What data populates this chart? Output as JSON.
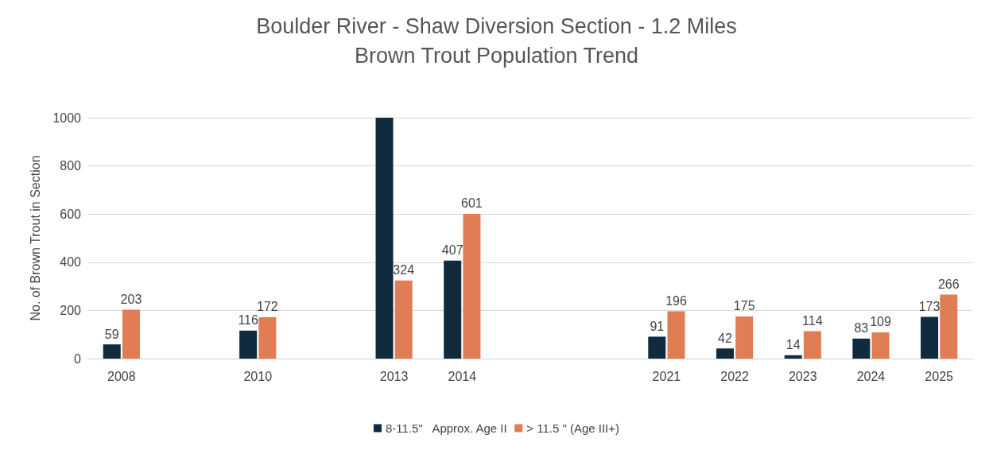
{
  "chart_data": {
    "type": "bar",
    "title": "Boulder River - Shaw Diversion Section - 1.2 Miles",
    "subtitle": "Brown Trout Population Trend",
    "ylabel": "No. of Brown Trout in Section",
    "categories": [
      "2008",
      null,
      "2010",
      null,
      "2013",
      "2014",
      null,
      null,
      "2021",
      "2022",
      "2023",
      "2024",
      "2025"
    ],
    "series": [
      {
        "name": "8-11.5\"   Approx. Age II",
        "color": "#0f2b3d",
        "values": [
          59,
          null,
          116,
          null,
          1000,
          407,
          null,
          null,
          91,
          42,
          14,
          83,
          173
        ],
        "value_labels": [
          "59",
          null,
          "116",
          null,
          null,
          "407",
          null,
          null,
          "91",
          "42",
          "14",
          "83",
          "173"
        ]
      },
      {
        "name": "> 11.5 \" (Age III+)",
        "color": "#e07d55",
        "values": [
          203,
          null,
          172,
          null,
          324,
          601,
          null,
          null,
          196,
          175,
          114,
          109,
          266
        ],
        "value_labels": [
          "203",
          null,
          "172",
          null,
          "324",
          "601",
          null,
          null,
          "196",
          "175",
          "114",
          "109",
          "266"
        ]
      }
    ],
    "ylim": [
      0,
      1000
    ],
    "yticks": [
      0,
      200,
      400,
      600,
      800,
      1000
    ],
    "grid": "y",
    "legend": "bottom"
  }
}
